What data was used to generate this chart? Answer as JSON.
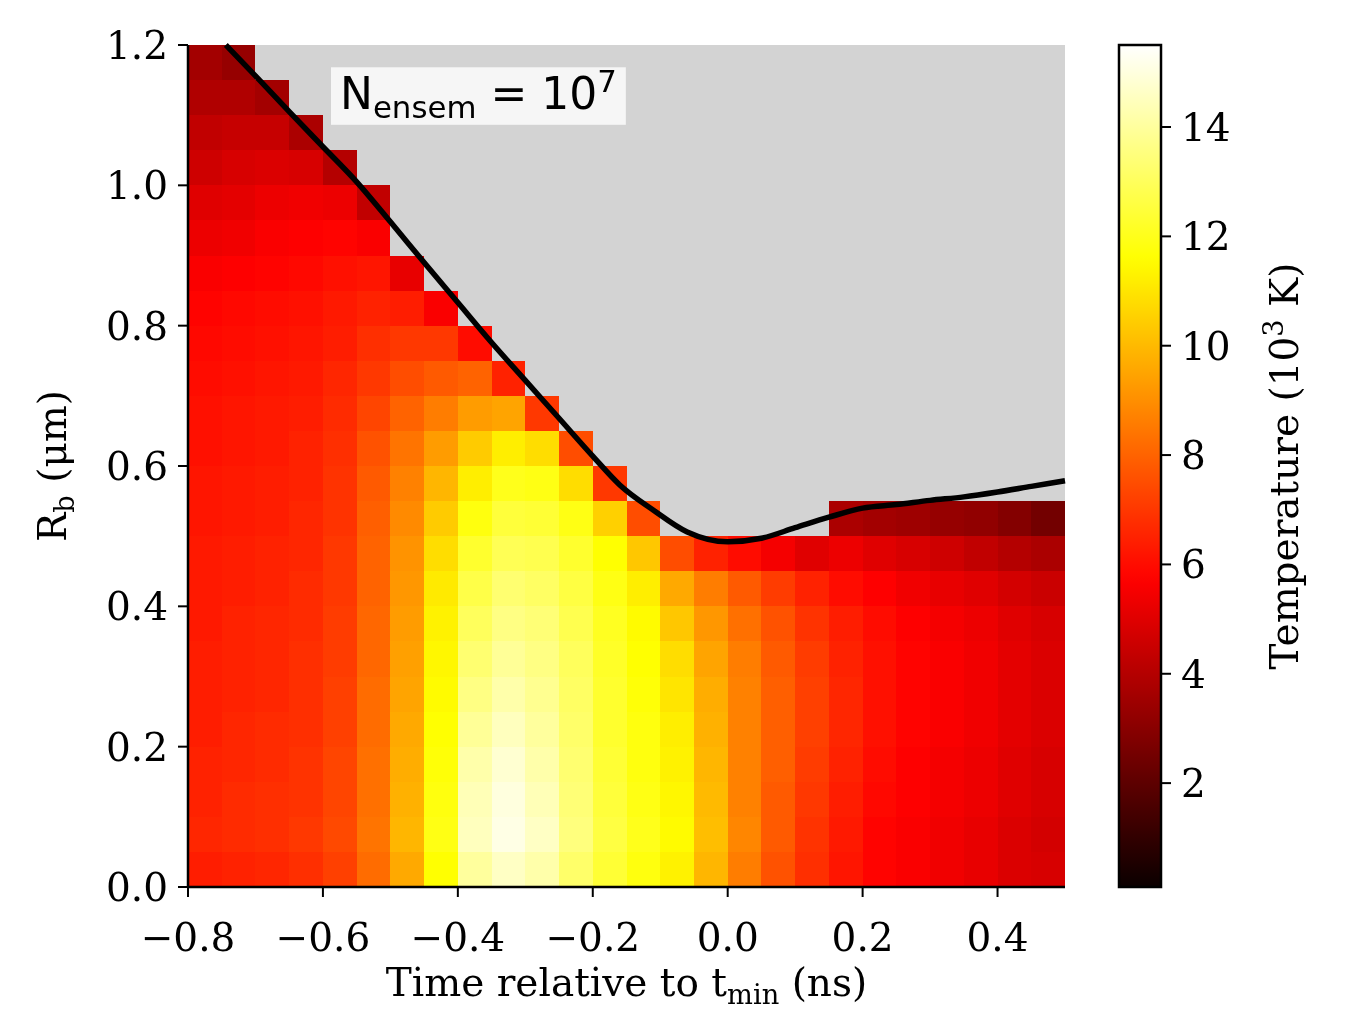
{
  "chart_data": {
    "type": "heatmap",
    "xlabel": "Time relative to t$_{min}$ (ns)",
    "ylabel": "R$_{b}$ (μm)",
    "clabel": "Temperature (10$^{3}$ K)",
    "annotations": [
      "N$_{ensem}$ = 10$^{7}$"
    ],
    "x": [
      -0.775,
      -0.725,
      -0.675,
      -0.625,
      -0.575,
      -0.525,
      -0.475,
      -0.425,
      -0.375,
      -0.325,
      -0.275,
      -0.225,
      -0.175,
      -0.125,
      -0.075,
      -0.025,
      0.025,
      0.075,
      0.125,
      0.175,
      0.225,
      0.275,
      0.325,
      0.375,
      0.425,
      0.475
    ],
    "cells": [
      [
        3.6,
        3.3,
        null,
        null,
        null,
        null,
        null,
        null,
        null,
        null,
        null,
        null,
        null,
        null,
        null,
        null,
        null,
        null,
        null,
        null,
        null,
        null,
        null,
        null,
        null,
        null
      ],
      [
        3.9,
        3.9,
        3.6,
        null,
        null,
        null,
        null,
        null,
        null,
        null,
        null,
        null,
        null,
        null,
        null,
        null,
        null,
        null,
        null,
        null,
        null,
        null,
        null,
        null,
        null,
        null
      ],
      [
        4.3,
        4.4,
        4.4,
        3.8,
        null,
        null,
        null,
        null,
        null,
        null,
        null,
        null,
        null,
        null,
        null,
        null,
        null,
        null,
        null,
        null,
        null,
        null,
        null,
        null,
        null,
        null
      ],
      [
        4.6,
        4.8,
        4.9,
        4.8,
        4.0,
        null,
        null,
        null,
        null,
        null,
        null,
        null,
        null,
        null,
        null,
        null,
        null,
        null,
        null,
        null,
        null,
        null,
        null,
        null,
        null,
        null
      ],
      [
        5.0,
        5.1,
        5.3,
        5.4,
        5.3,
        4.3,
        null,
        null,
        null,
        null,
        null,
        null,
        null,
        null,
        null,
        null,
        null,
        null,
        null,
        null,
        null,
        null,
        null,
        null,
        null,
        null
      ],
      [
        5.3,
        5.4,
        5.6,
        5.7,
        5.8,
        5.6,
        null,
        null,
        null,
        null,
        null,
        null,
        null,
        null,
        null,
        null,
        null,
        null,
        null,
        null,
        null,
        null,
        null,
        null,
        null,
        null
      ],
      [
        5.6,
        5.7,
        5.8,
        5.9,
        6.1,
        6.2,
        5.2,
        null,
        null,
        null,
        null,
        null,
        null,
        null,
        null,
        null,
        null,
        null,
        null,
        null,
        null,
        null,
        null,
        null,
        null,
        null
      ],
      [
        5.8,
        5.9,
        6.0,
        6.1,
        6.3,
        6.5,
        6.4,
        5.6,
        null,
        null,
        null,
        null,
        null,
        null,
        null,
        null,
        null,
        null,
        null,
        null,
        null,
        null,
        null,
        null,
        null,
        null
      ],
      [
        5.9,
        6.0,
        6.1,
        6.2,
        6.4,
        6.8,
        7.0,
        7.0,
        6.0,
        null,
        null,
        null,
        null,
        null,
        null,
        null,
        null,
        null,
        null,
        null,
        null,
        null,
        null,
        null,
        null,
        null
      ],
      [
        6.0,
        6.1,
        6.2,
        6.3,
        6.6,
        7.0,
        7.5,
        7.8,
        8.0,
        6.5,
        null,
        null,
        null,
        null,
        null,
        null,
        null,
        null,
        null,
        null,
        null,
        null,
        null,
        null,
        null,
        null
      ],
      [
        6.1,
        6.2,
        6.3,
        6.4,
        6.7,
        7.3,
        8.0,
        8.6,
        9.3,
        9.5,
        7.0,
        null,
        null,
        null,
        null,
        null,
        null,
        null,
        null,
        null,
        null,
        null,
        null,
        null,
        null,
        null
      ],
      [
        6.1,
        6.2,
        6.3,
        6.5,
        6.8,
        7.6,
        8.4,
        9.3,
        10.4,
        11.2,
        10.8,
        7.5,
        null,
        null,
        null,
        null,
        null,
        null,
        null,
        null,
        null,
        null,
        null,
        null,
        null,
        null
      ],
      [
        6.2,
        6.3,
        6.4,
        6.5,
        6.9,
        7.8,
        8.7,
        9.9,
        11.2,
        12.0,
        11.9,
        10.8,
        7.0,
        null,
        null,
        null,
        null,
        null,
        null,
        null,
        null,
        null,
        null,
        null,
        null,
        null
      ],
      [
        6.2,
        6.3,
        6.4,
        6.6,
        6.9,
        7.9,
        8.9,
        10.4,
        11.8,
        12.5,
        12.4,
        11.9,
        10.5,
        7.5,
        null,
        null,
        null,
        null,
        null,
        3.8,
        3.6,
        3.5,
        3.3,
        3.2,
        2.9,
        2.5
      ],
      [
        6.3,
        6.4,
        6.5,
        6.6,
        7.0,
        8.0,
        9.1,
        10.8,
        12.3,
        12.9,
        12.8,
        12.3,
        11.6,
        10.3,
        7.5,
        6.5,
        6.0,
        5.5,
        5.0,
        5.3,
        5.0,
        4.8,
        4.6,
        4.3,
        4.0,
        3.8
      ],
      [
        6.3,
        6.4,
        6.5,
        6.7,
        7.0,
        8.0,
        9.2,
        11.1,
        12.7,
        13.3,
        13.1,
        12.6,
        11.9,
        11.2,
        9.6,
        8.6,
        7.8,
        7.1,
        6.5,
        6.0,
        5.7,
        5.4,
        5.2,
        5.0,
        4.7,
        4.5
      ],
      [
        6.3,
        6.5,
        6.6,
        6.7,
        7.1,
        8.1,
        9.3,
        11.3,
        13.0,
        13.6,
        13.4,
        12.8,
        12.1,
        11.5,
        10.3,
        9.2,
        8.3,
        7.6,
        6.9,
        6.4,
        6.0,
        5.7,
        5.5,
        5.3,
        5.0,
        4.8
      ],
      [
        6.4,
        6.5,
        6.6,
        6.8,
        7.1,
        8.1,
        9.4,
        11.4,
        13.3,
        13.9,
        13.6,
        13.0,
        12.2,
        11.6,
        10.8,
        9.5,
        8.6,
        7.8,
        7.1,
        6.5,
        6.1,
        5.8,
        5.6,
        5.4,
        5.1,
        4.9
      ],
      [
        6.4,
        6.5,
        6.6,
        6.8,
        7.2,
        8.2,
        9.5,
        11.5,
        13.6,
        14.2,
        13.8,
        13.1,
        12.3,
        11.7,
        11.0,
        9.7,
        8.7,
        7.9,
        7.2,
        6.6,
        6.1,
        5.8,
        5.6,
        5.4,
        5.1,
        4.9
      ],
      [
        6.4,
        6.6,
        6.7,
        6.8,
        7.2,
        8.2,
        9.6,
        11.6,
        13.9,
        14.5,
        14.0,
        13.2,
        12.3,
        11.8,
        11.2,
        9.8,
        8.7,
        7.9,
        7.2,
        6.6,
        6.1,
        5.8,
        5.6,
        5.4,
        5.1,
        4.9
      ],
      [
        6.5,
        6.6,
        6.7,
        6.9,
        7.3,
        8.3,
        9.7,
        11.7,
        14.2,
        14.8,
        14.2,
        13.3,
        12.4,
        11.8,
        11.3,
        9.9,
        8.7,
        7.9,
        7.1,
        6.5,
        6.0,
        5.7,
        5.5,
        5.3,
        5.0,
        4.8
      ],
      [
        6.5,
        6.7,
        6.8,
        6.9,
        7.3,
        8.3,
        9.8,
        11.8,
        14.4,
        15.0,
        14.4,
        13.4,
        12.5,
        11.9,
        11.4,
        10.0,
        8.7,
        7.8,
        7.0,
        6.4,
        5.9,
        5.7,
        5.5,
        5.3,
        5.0,
        4.8
      ],
      [
        6.6,
        6.7,
        6.8,
        7.0,
        7.4,
        8.4,
        9.9,
        11.9,
        14.5,
        15.1,
        14.6,
        13.5,
        12.6,
        12.0,
        11.5,
        10.1,
        8.8,
        7.8,
        6.9,
        6.3,
        5.8,
        5.6,
        5.4,
        5.2,
        4.9,
        4.7
      ],
      [
        6.4,
        6.5,
        6.6,
        6.8,
        7.2,
        8.2,
        9.6,
        11.6,
        14.0,
        14.6,
        14.2,
        13.2,
        12.4,
        11.8,
        11.3,
        9.9,
        8.6,
        7.6,
        6.8,
        6.2,
        5.8,
        5.6,
        5.4,
        5.2,
        4.9,
        4.8
      ]
    ],
    "clim": [
      0.1,
      15.5
    ],
    "cticks": [
      2,
      4,
      6,
      8,
      10,
      12,
      14
    ],
    "xlim": [
      -0.8,
      0.5
    ],
    "xticks": [
      {
        "value": -0.8,
        "label": "−0.8"
      },
      {
        "value": -0.6,
        "label": "−0.6"
      },
      {
        "value": -0.4,
        "label": "−0.4"
      },
      {
        "value": -0.2,
        "label": "−0.2"
      },
      {
        "value": 0,
        "label": "0.0"
      },
      0.2,
      0.4
    ],
    "ylim": [
      0,
      1.2
    ],
    "yticks": [
      {
        "value": 0,
        "label": "0.0"
      },
      0.2,
      0.4,
      0.6,
      0.8,
      {
        "value": 1,
        "label": "1.0"
      },
      1.2
    ],
    "series": [
      {
        "type": "line",
        "color": "#000000",
        "x": [
          -0.744,
          -0.7,
          -0.65,
          -0.6,
          -0.55,
          -0.5,
          -0.45,
          -0.4,
          -0.35,
          -0.3,
          -0.25,
          -0.2,
          -0.16,
          -0.11,
          -0.06,
          0,
          0.05,
          0.1,
          0.15,
          0.2,
          0.25,
          0.3,
          0.35,
          0.4,
          0.45,
          0.5
        ],
        "values": [
          1.2,
          1.156,
          1.105,
          1.055,
          1.005,
          0.948,
          0.89,
          0.833,
          0.776,
          0.722,
          0.668,
          0.614,
          0.573,
          0.537,
          0.506,
          0.492,
          0.497,
          0.512,
          0.527,
          0.54,
          0.545,
          0.551,
          0.556,
          0.563,
          0.571,
          0.579
        ]
      }
    ]
  }
}
